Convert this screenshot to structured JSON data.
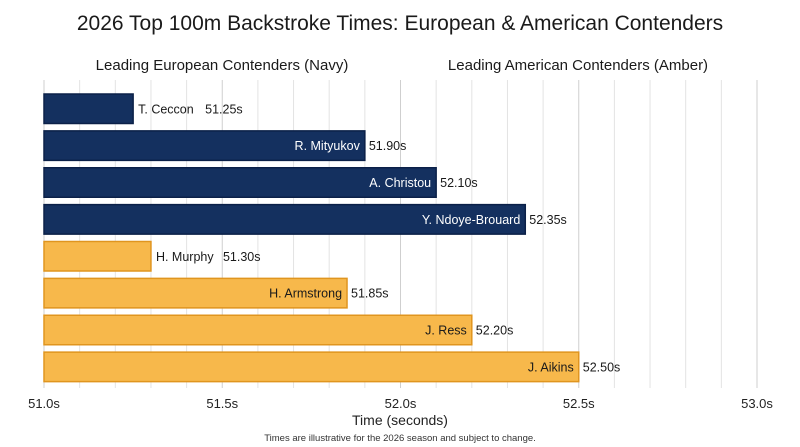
{
  "chart_data": {
    "type": "bar",
    "orientation": "horizontal",
    "title": "2026 Top 100m Backstroke Times: European & American Contenders",
    "group_labels": [
      "Leading European Contenders (Navy)",
      "Leading American Contenders (Amber)"
    ],
    "xlabel": "Time (seconds)",
    "ylabel": "",
    "xlim": [
      51.0,
      53.0
    ],
    "xticks": [
      51.0,
      51.5,
      52.0,
      52.5,
      53.0
    ],
    "xtick_labels": [
      "51.0s",
      "51.5s",
      "52.0s",
      "52.5s",
      "53.0s"
    ],
    "grid": true,
    "series": [
      {
        "name": "Leading European Contenders (Navy)",
        "color": "#14305f",
        "categories": [
          "T. Ceccon",
          "R. Mityukov",
          "A. Christou",
          "Y. Ndoye-Brouard"
        ],
        "values": [
          51.25,
          51.9,
          52.1,
          52.35
        ],
        "value_labels": [
          "51.25s",
          "51.90s",
          "52.10s",
          "52.35s"
        ]
      },
      {
        "name": "Leading American Contenders (Amber)",
        "color": "#f7b84b",
        "categories": [
          "H. Murphy",
          "H. Armstrong",
          "J. Ress",
          "J. Aikins"
        ],
        "values": [
          51.3,
          51.85,
          52.2,
          52.5
        ],
        "value_labels": [
          "51.30s",
          "51.85s",
          "52.20s",
          "52.50s"
        ]
      }
    ],
    "footnote": "Times are illustrative for the 2026 season and subject to change."
  }
}
